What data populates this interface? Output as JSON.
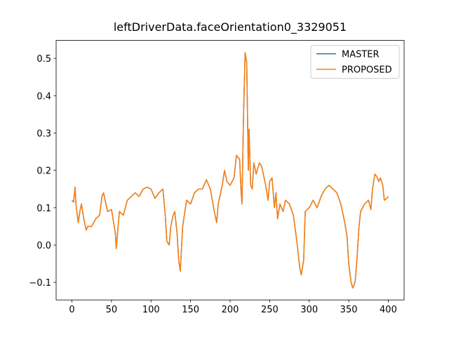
{
  "chart_data": {
    "type": "line",
    "title": "leftDriverData.faceOrientation0_3329051",
    "x": [
      0,
      2,
      4,
      5,
      8,
      10,
      12,
      15,
      18,
      20,
      25,
      30,
      35,
      38,
      40,
      45,
      50,
      55,
      56,
      60,
      65,
      70,
      75,
      80,
      85,
      90,
      95,
      100,
      105,
      110,
      115,
      118,
      120,
      123,
      125,
      128,
      130,
      133,
      135,
      137,
      140,
      145,
      150,
      155,
      160,
      165,
      170,
      175,
      180,
      183,
      185,
      190,
      193,
      196,
      200,
      205,
      208,
      212,
      214,
      215,
      217,
      219,
      221,
      222,
      223,
      224,
      226,
      228,
      230,
      233,
      237,
      240,
      245,
      248,
      250,
      253,
      256,
      258,
      260,
      263,
      267,
      270,
      275,
      280,
      285,
      288,
      290,
      293,
      295,
      300,
      305,
      310,
      315,
      320,
      325,
      330,
      335,
      340,
      345,
      348,
      350,
      353,
      355,
      358,
      360,
      363,
      365,
      370,
      375,
      378,
      380,
      383,
      385,
      388,
      390,
      393,
      395,
      398,
      400
    ],
    "series": [
      {
        "name": "MASTER",
        "color": "#1f77b4",
        "values": [
          0.12,
          0.115,
          0.155,
          0.11,
          0.06,
          0.09,
          0.11,
          0.07,
          0.04,
          0.05,
          0.05,
          0.07,
          0.08,
          0.13,
          0.14,
          0.09,
          0.095,
          0.03,
          -0.01,
          0.09,
          0.08,
          0.12,
          0.13,
          0.14,
          0.13,
          0.15,
          0.155,
          0.15,
          0.125,
          0.14,
          0.15,
          0.08,
          0.01,
          0.0,
          0.05,
          0.08,
          0.09,
          0.03,
          -0.04,
          -0.07,
          0.05,
          0.12,
          0.11,
          0.14,
          0.15,
          0.15,
          0.175,
          0.15,
          0.09,
          0.06,
          0.11,
          0.16,
          0.2,
          0.17,
          0.16,
          0.18,
          0.24,
          0.23,
          0.14,
          0.11,
          0.35,
          0.515,
          0.49,
          0.35,
          0.2,
          0.31,
          0.16,
          0.15,
          0.22,
          0.19,
          0.22,
          0.21,
          0.16,
          0.12,
          0.17,
          0.18,
          0.1,
          0.14,
          0.07,
          0.11,
          0.09,
          0.12,
          0.11,
          0.08,
          0.0,
          -0.06,
          -0.08,
          -0.04,
          0.09,
          0.1,
          0.12,
          0.1,
          0.13,
          0.15,
          0.16,
          0.15,
          0.14,
          0.11,
          0.06,
          0.02,
          -0.05,
          -0.1,
          -0.115,
          -0.1,
          -0.05,
          0.05,
          0.09,
          0.11,
          0.12,
          0.095,
          0.15,
          0.19,
          0.185,
          0.17,
          0.18,
          0.16,
          0.12,
          0.125,
          0.13
        ]
      },
      {
        "name": "PROPOSED",
        "color": "#ff7f0e",
        "values": [
          0.12,
          0.115,
          0.155,
          0.11,
          0.06,
          0.09,
          0.11,
          0.07,
          0.04,
          0.05,
          0.05,
          0.07,
          0.08,
          0.13,
          0.14,
          0.09,
          0.095,
          0.03,
          -0.01,
          0.09,
          0.08,
          0.12,
          0.13,
          0.14,
          0.13,
          0.15,
          0.155,
          0.15,
          0.125,
          0.14,
          0.15,
          0.08,
          0.01,
          0.0,
          0.05,
          0.08,
          0.09,
          0.03,
          -0.04,
          -0.07,
          0.05,
          0.12,
          0.11,
          0.14,
          0.15,
          0.15,
          0.175,
          0.15,
          0.09,
          0.06,
          0.11,
          0.16,
          0.2,
          0.17,
          0.16,
          0.18,
          0.24,
          0.23,
          0.14,
          0.11,
          0.35,
          0.515,
          0.49,
          0.35,
          0.2,
          0.31,
          0.16,
          0.15,
          0.22,
          0.19,
          0.22,
          0.21,
          0.16,
          0.12,
          0.17,
          0.18,
          0.1,
          0.14,
          0.07,
          0.11,
          0.09,
          0.12,
          0.11,
          0.08,
          0.0,
          -0.06,
          -0.08,
          -0.04,
          0.09,
          0.1,
          0.12,
          0.1,
          0.13,
          0.15,
          0.16,
          0.15,
          0.14,
          0.11,
          0.06,
          0.02,
          -0.05,
          -0.1,
          -0.115,
          -0.1,
          -0.05,
          0.05,
          0.09,
          0.11,
          0.12,
          0.095,
          0.15,
          0.19,
          0.185,
          0.17,
          0.18,
          0.16,
          0.12,
          0.125,
          0.13
        ]
      }
    ],
    "xlim": [
      -20,
      420
    ],
    "xticks": [
      0,
      50,
      100,
      150,
      200,
      250,
      300,
      350,
      400
    ],
    "ylim": [
      -0.147,
      0.548
    ],
    "yticks": [
      {
        "value": -0.1,
        "label": "−0.1"
      },
      {
        "value": 0,
        "label": "0.0"
      },
      0.1,
      0.2,
      0.3,
      0.4,
      0.5
    ],
    "legend": "upper right",
    "grid": false
  }
}
